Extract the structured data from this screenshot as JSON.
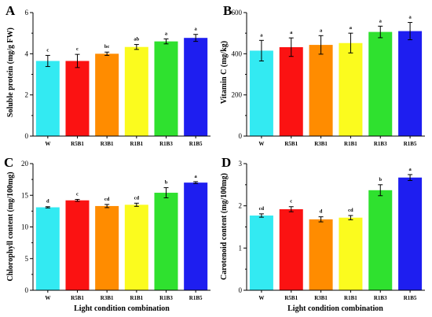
{
  "chart_data": [
    {
      "panel": "A",
      "type": "bar",
      "title": "",
      "xlabel": "",
      "ylabel": "Soluble protein (mg/g FW)",
      "ylim": [
        0,
        6
      ],
      "yticks": [
        0,
        2,
        4,
        6
      ],
      "categories": [
        "W",
        "R5B1",
        "R3B1",
        "R1B1",
        "R1B3",
        "R1B5"
      ],
      "values": [
        3.65,
        3.65,
        4.0,
        4.33,
        4.6,
        4.77
      ],
      "errors": [
        0.27,
        0.32,
        0.08,
        0.12,
        0.12,
        0.17
      ],
      "significance": [
        "c",
        "c",
        "bc",
        "ab",
        "a",
        "a"
      ],
      "colors": [
        "#33eaf2",
        "#fb1212",
        "#ff8c00",
        "#fbfb1e",
        "#2fe12f",
        "#1e1ef0"
      ],
      "grid": false
    },
    {
      "panel": "B",
      "type": "bar",
      "title": "",
      "xlabel": "",
      "ylabel": "Vitamin C (mg/kg)",
      "ylim": [
        0,
        600
      ],
      "yticks": [
        0,
        200,
        400,
        600
      ],
      "categories": [
        "W",
        "R5B1",
        "R3B1",
        "R1B1",
        "R1B3",
        "R1B5"
      ],
      "values": [
        415,
        432,
        443,
        452,
        506,
        510
      ],
      "errors": [
        50,
        45,
        45,
        48,
        28,
        42
      ],
      "significance": [
        "a",
        "a",
        "a",
        "a",
        "a",
        "a"
      ],
      "colors": [
        "#33eaf2",
        "#fb1212",
        "#ff8c00",
        "#fbfb1e",
        "#2fe12f",
        "#1e1ef0"
      ],
      "grid": false
    },
    {
      "panel": "C",
      "type": "bar",
      "title": "",
      "xlabel": "Light condition combination",
      "ylabel": "Chlorophyll content (mg/100mg)",
      "ylim": [
        0,
        20
      ],
      "yticks": [
        0,
        5,
        10,
        15,
        20
      ],
      "categories": [
        "W",
        "R5B1",
        "R3B1",
        "R1B1",
        "R1B3",
        "R1B5"
      ],
      "values": [
        13.1,
        14.2,
        13.3,
        13.5,
        15.4,
        17.0
      ],
      "errors": [
        0.1,
        0.15,
        0.25,
        0.25,
        0.8,
        0.15
      ],
      "significance": [
        "d",
        "c",
        "cd",
        "cd",
        "b",
        "a"
      ],
      "colors": [
        "#33eaf2",
        "#fb1212",
        "#ff8c00",
        "#fbfb1e",
        "#2fe12f",
        "#1e1ef0"
      ],
      "grid": false
    },
    {
      "panel": "D",
      "type": "bar",
      "title": "",
      "xlabel": "Light condition combination",
      "ylabel": "Carotenoid content (mg/100mg)",
      "ylim": [
        0,
        3
      ],
      "yticks": [
        0,
        1,
        2,
        3
      ],
      "categories": [
        "W",
        "R5B1",
        "R3B1",
        "R1B1",
        "R1B3",
        "R1B5"
      ],
      "values": [
        1.77,
        1.92,
        1.68,
        1.72,
        2.37,
        2.67
      ],
      "errors": [
        0.04,
        0.06,
        0.06,
        0.05,
        0.13,
        0.07
      ],
      "significance": [
        "cd",
        "c",
        "d",
        "cd",
        "b",
        "a"
      ],
      "colors": [
        "#33eaf2",
        "#fb1212",
        "#ff8c00",
        "#fbfb1e",
        "#2fe12f",
        "#1e1ef0"
      ],
      "grid": false
    }
  ]
}
